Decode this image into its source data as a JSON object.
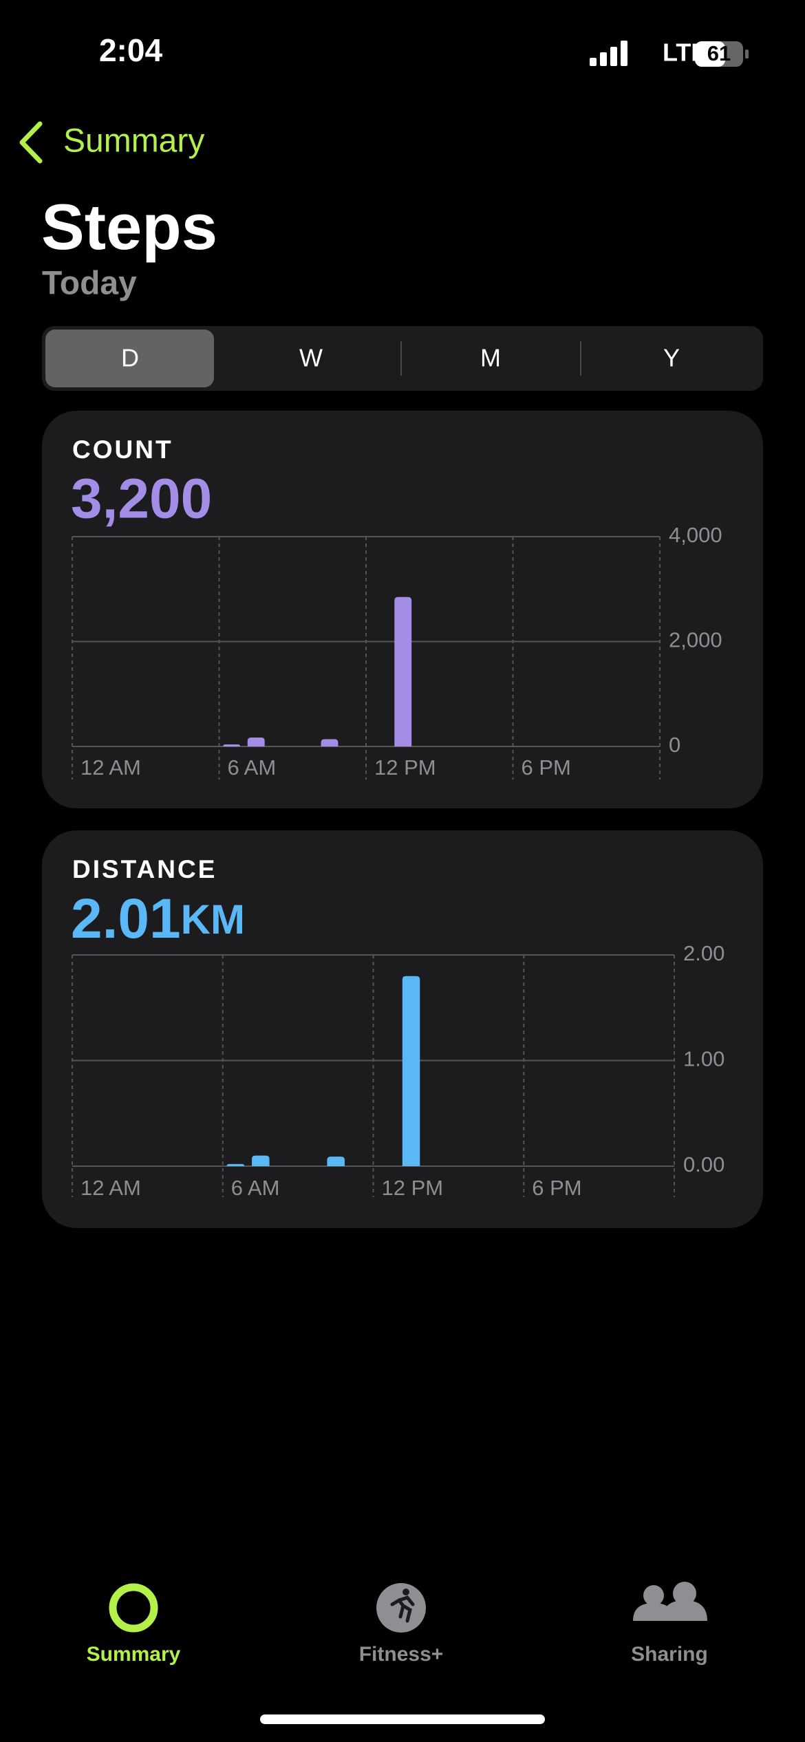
{
  "status_bar": {
    "time": "2:04",
    "network": "LTE",
    "battery": "61"
  },
  "nav": {
    "back": "Summary"
  },
  "header": {
    "title": "Steps",
    "subtitle": "Today"
  },
  "segments": [
    "D",
    "W",
    "M",
    "Y"
  ],
  "chart_data": [
    {
      "type": "bar",
      "label": "COUNT",
      "summary": "3,200",
      "color": "#a48de6",
      "x": [
        6,
        7,
        10,
        13
      ],
      "values": [
        40,
        170,
        140,
        2850
      ],
      "xlim": [
        0,
        24
      ],
      "xticks": [
        {
          "value": 0,
          "label": "12 AM"
        },
        {
          "value": 6,
          "label": "6 AM"
        },
        {
          "value": 12,
          "label": "12 PM"
        },
        {
          "value": 18,
          "label": "6 PM"
        }
      ],
      "ylim": [
        0,
        4000
      ],
      "yticks": [
        0,
        {
          "value": 2000,
          "label": "2,000"
        },
        {
          "value": 4000,
          "label": "4,000"
        }
      ],
      "grid": true
    },
    {
      "type": "bar",
      "label": "DISTANCE",
      "summary": "2.01",
      "unit": "KM",
      "color": "#5ab8f7",
      "x": [
        6,
        7,
        10,
        13
      ],
      "values": [
        0.02,
        0.1,
        0.09,
        1.8
      ],
      "xlim": [
        0,
        24
      ],
      "xticks": [
        {
          "value": 0,
          "label": "12 AM"
        },
        {
          "value": 6,
          "label": "6 AM"
        },
        {
          "value": 12,
          "label": "12 PM"
        },
        {
          "value": 18,
          "label": "6 PM"
        }
      ],
      "ylim": [
        0,
        2
      ],
      "yticks": [
        {
          "value": 0,
          "label": "0.00"
        },
        {
          "value": 1,
          "label": "1.00"
        },
        {
          "value": 2,
          "label": "2.00"
        }
      ],
      "grid": true
    }
  ],
  "tab_bar": [
    "Summary",
    "Fitness+",
    "Sharing"
  ]
}
